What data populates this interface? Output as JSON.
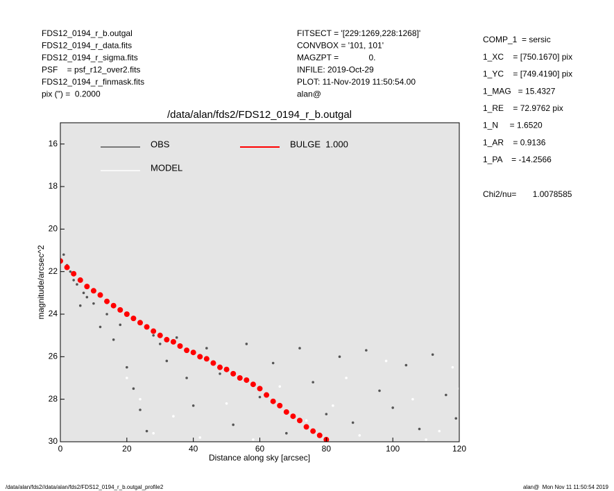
{
  "info_left": [
    "FDS12_0194_r_b.outgal",
    "FDS12_0194_r_data.fits",
    "FDS12_0194_r_sigma.fits",
    "PSF    = psf_r12_over2.fits",
    "FDS12_0194_r_finmask.fits",
    "pix (\") =  0.2000"
  ],
  "info_middle": [
    "FITSECT = '[229:1269,228:1268]'",
    "CONVBOX = '101, 101'",
    "MAGZPT =             0.",
    "INFILE: 2019-Oct-29",
    "PLOT: 11-Nov-2019 11:50:54.00",
    "alan@"
  ],
  "info_right": [
    "COMP_1  = sersic",
    "1_XC    = [750.1670] pix",
    "1_YC    = [749.4190] pix",
    "1_MAG   = 15.4327",
    "1_RE    = 72.9762 pix",
    "1_N     = 1.6520",
    "1_AR    = 0.9136",
    "1_PA    = -14.2566"
  ],
  "chi2": "Chi2/nu=       1.0078585",
  "footer_left": "/data/alan/fds2//data/alan/fds2/FDS12_0194_r_b.outgal_profile2",
  "footer_right": "alan@  Mon Nov 11 11:50:54 2019",
  "chart_data": {
    "type": "scatter",
    "title": "/data/alan/fds2/FDS12_0194_r_b.outgal",
    "x_label": "Distance along sky [arcsec]",
    "y_label": "magnitude/arcsec^2",
    "xlim": [
      0,
      120
    ],
    "xticks": [
      0,
      20,
      40,
      60,
      80,
      100,
      120
    ],
    "ylim": [
      15,
      30
    ],
    "yticks": [
      16,
      18,
      20,
      22,
      24,
      26,
      28,
      30
    ],
    "y_inverted": true,
    "background": "#e5e5e5",
    "series": [
      {
        "name": "OBS",
        "color": "#555555",
        "x": [
          1,
          2,
          3,
          4,
          5,
          6,
          7,
          8,
          10,
          12,
          14,
          16,
          18,
          20,
          22,
          24,
          26,
          28,
          30,
          32,
          35,
          38,
          40,
          44,
          48,
          52,
          56,
          60,
          64,
          68,
          72,
          76,
          80,
          84,
          88,
          92,
          96,
          100,
          104,
          108,
          112,
          116,
          119
        ],
        "values": [
          21.2,
          21.7,
          22.0,
          22.4,
          22.6,
          23.6,
          23.0,
          23.2,
          23.5,
          24.6,
          24.0,
          25.2,
          24.5,
          26.5,
          27.5,
          28.5,
          29.5,
          25.0,
          25.4,
          26.2,
          25.1,
          27.0,
          28.3,
          25.6,
          26.8,
          29.2,
          25.4,
          27.9,
          26.3,
          29.6,
          25.6,
          27.2,
          28.7,
          26.0,
          29.1,
          25.7,
          27.6,
          28.4,
          26.4,
          29.4,
          25.9,
          27.8,
          28.9
        ]
      },
      {
        "name": "MODEL",
        "color": "#ffffff",
        "x": [
          20,
          24,
          28,
          34,
          42,
          50,
          58,
          66,
          74,
          82,
          90,
          98,
          106,
          114,
          118,
          120,
          110,
          86
        ],
        "values": [
          27.0,
          28.0,
          29.6,
          28.8,
          29.8,
          28.2,
          29.9,
          27.4,
          29.0,
          28.3,
          29.7,
          26.2,
          28.0,
          29.5,
          26.5,
          27.5,
          29.9,
          27.0
        ]
      },
      {
        "name": "BULGE  1.000",
        "color": "#ff0000",
        "x": [
          0,
          2,
          4,
          6,
          8,
          10,
          12,
          14,
          16,
          18,
          20,
          22,
          24,
          26,
          28,
          30,
          32,
          34,
          36,
          38,
          40,
          42,
          44,
          46,
          48,
          50,
          52,
          54,
          56,
          58,
          60,
          62,
          64,
          66,
          68,
          70,
          72,
          74,
          76,
          78,
          80
        ],
        "values": [
          21.5,
          21.8,
          22.1,
          22.4,
          22.7,
          22.9,
          23.1,
          23.4,
          23.6,
          23.8,
          24.0,
          24.2,
          24.4,
          24.6,
          24.8,
          25.0,
          25.2,
          25.3,
          25.5,
          25.7,
          25.8,
          26.0,
          26.1,
          26.3,
          26.5,
          26.6,
          26.8,
          27.0,
          27.1,
          27.3,
          27.5,
          27.8,
          28.1,
          28.3,
          28.6,
          28.8,
          29.0,
          29.3,
          29.5,
          29.7,
          29.9
        ]
      }
    ]
  }
}
